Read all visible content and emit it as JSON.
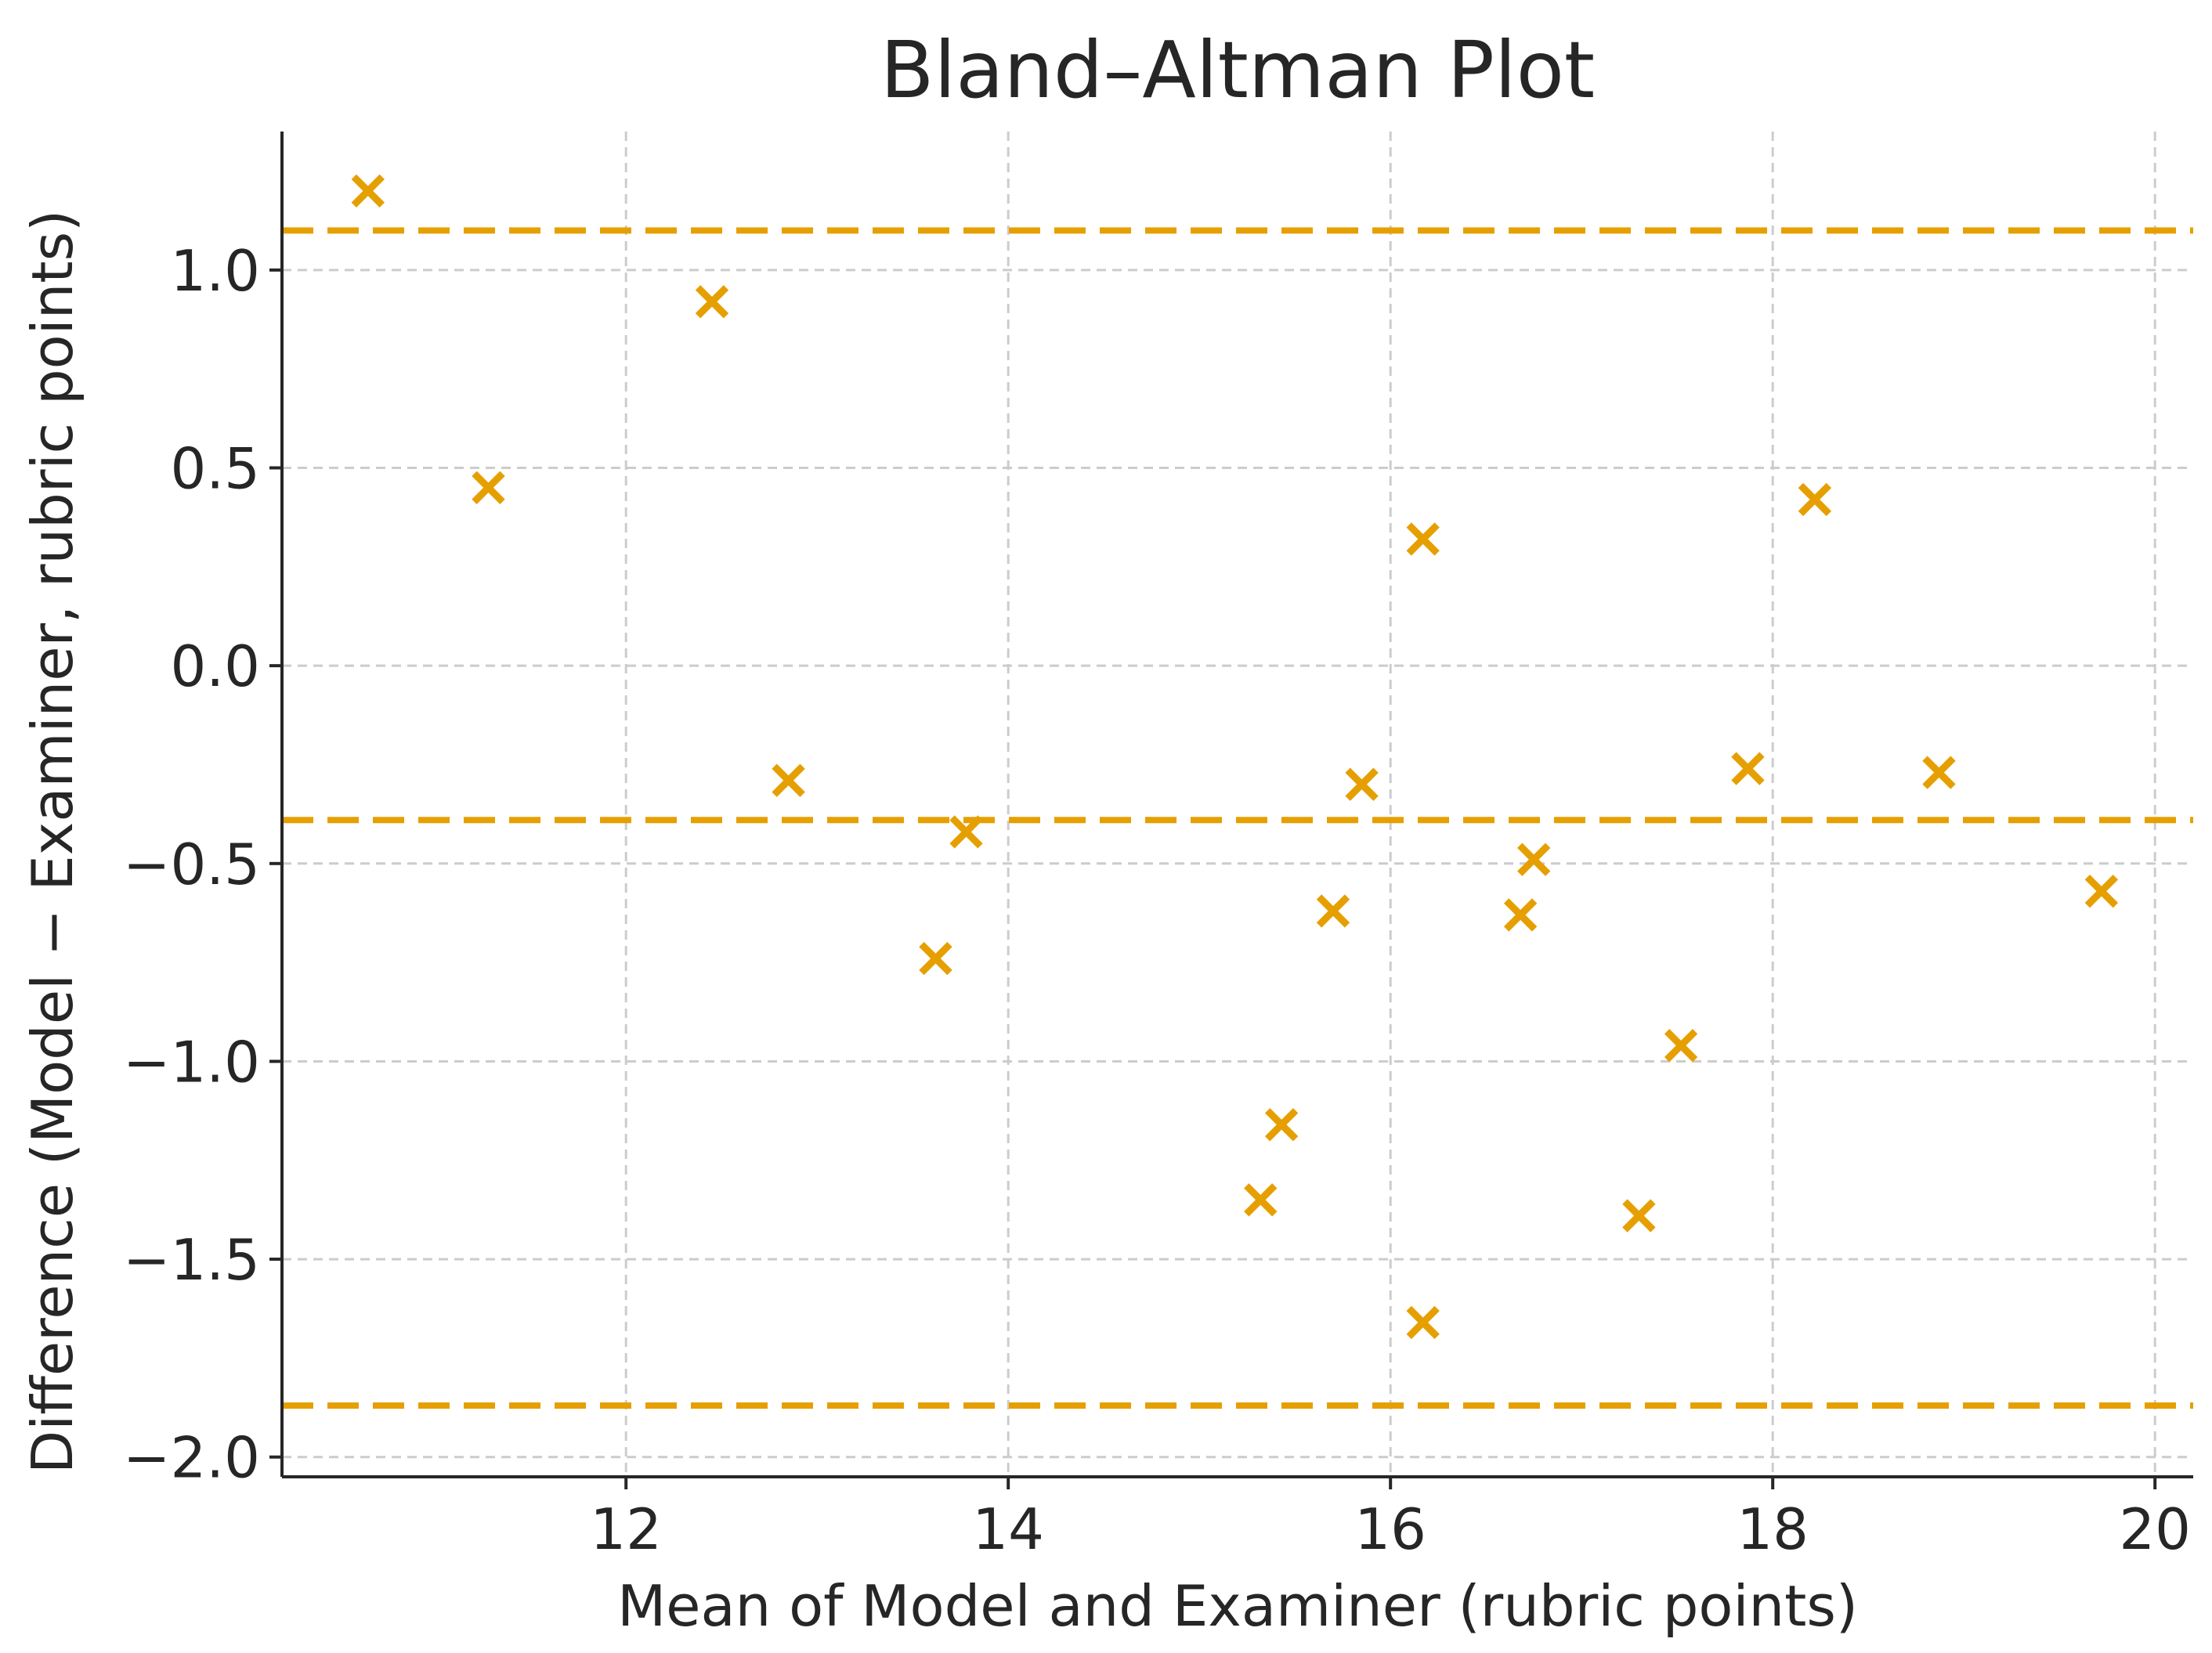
{
  "chart_data": {
    "type": "scatter",
    "title": "Bland–Altman Plot",
    "xlabel": "Mean of Model and Examiner (rubric points)",
    "ylabel": "Difference (Model − Examiner, rubric points)",
    "xlim": [
      10.2,
      20.2
    ],
    "ylim": [
      -2.05,
      1.35
    ],
    "x_ticks": [
      {
        "value": 12,
        "label": "12"
      },
      {
        "value": 14,
        "label": "14"
      },
      {
        "value": 16,
        "label": "16"
      },
      {
        "value": 18,
        "label": "18"
      },
      {
        "value": 20,
        "label": "20"
      }
    ],
    "y_ticks": [
      {
        "value": 1.0,
        "label": "1.0"
      },
      {
        "value": 0.5,
        "label": "0.5"
      },
      {
        "value": 0.0,
        "label": "0.0"
      },
      {
        "value": -0.5,
        "label": "−0.5"
      },
      {
        "value": -1.0,
        "label": "−1.0"
      },
      {
        "value": -1.5,
        "label": "−1.5"
      },
      {
        "value": -2.0,
        "label": "−2.0"
      }
    ],
    "grid": true,
    "marker": "x",
    "color": "#E69F00",
    "reference_lines": [
      {
        "y": 1.1,
        "style": "dashed"
      },
      {
        "y": -0.39,
        "style": "dashed"
      },
      {
        "y": -1.87,
        "style": "dashed"
      }
    ],
    "points": [
      {
        "x": 10.65,
        "y": 1.2
      },
      {
        "x": 11.28,
        "y": 0.45
      },
      {
        "x": 12.45,
        "y": 0.92
      },
      {
        "x": 12.85,
        "y": -0.29
      },
      {
        "x": 13.62,
        "y": -0.74
      },
      {
        "x": 13.78,
        "y": -0.42
      },
      {
        "x": 15.32,
        "y": -1.35
      },
      {
        "x": 15.43,
        "y": -1.16
      },
      {
        "x": 15.7,
        "y": -0.62
      },
      {
        "x": 15.85,
        "y": -0.3
      },
      {
        "x": 16.17,
        "y": 0.32
      },
      {
        "x": 16.17,
        "y": -1.66
      },
      {
        "x": 16.68,
        "y": -0.63
      },
      {
        "x": 16.75,
        "y": -0.49
      },
      {
        "x": 17.3,
        "y": -1.39
      },
      {
        "x": 17.52,
        "y": -0.96
      },
      {
        "x": 17.87,
        "y": -0.26
      },
      {
        "x": 18.22,
        "y": 0.42
      },
      {
        "x": 18.87,
        "y": -0.27
      },
      {
        "x": 19.72,
        "y": -0.57
      }
    ]
  }
}
